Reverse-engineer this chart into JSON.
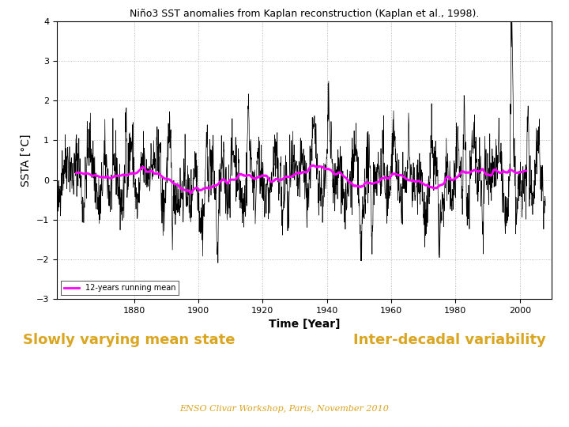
{
  "title": "Niño3 SST anomalies from Kaplan reconstruction (Kaplan et al., 1998).",
  "xlabel": "Time [Year]",
  "ylabel": "SSTA [°C]",
  "xlim": [
    1856,
    2010
  ],
  "ylim": [
    -3,
    4
  ],
  "yticks": [
    -3,
    -2,
    -1,
    0,
    1,
    2,
    3,
    4
  ],
  "xticks": [
    1880,
    1900,
    1920,
    1940,
    1960,
    1980,
    2000
  ],
  "line_color": "#000000",
  "smooth_color": "#FF00FF",
  "smooth_label": "12-years running mean",
  "bg_color": "#FFFFFF",
  "chart_bg": "#FFFFFF",
  "panel_bg": "#3535A0",
  "panel_text_left": "Slowly varying mean state",
  "panel_text_right": "Inter-decadal variability",
  "panel_text_color": "#DAA520",
  "footer_text": "ENSO Clivar Workshop, Paris, November 2010",
  "footer_bg": "#2828A8",
  "footer_text_color": "#DAA520",
  "arrow_text": "⇒",
  "arrow_color": "#FFFFFF",
  "title_fontsize": 9,
  "axis_label_fontsize": 10,
  "tick_fontsize": 8,
  "legend_fontsize": 7,
  "panel_fontsize": 13,
  "footer_fontsize": 8,
  "grid_color": "#AAAAAA",
  "grid_style": "dotted"
}
